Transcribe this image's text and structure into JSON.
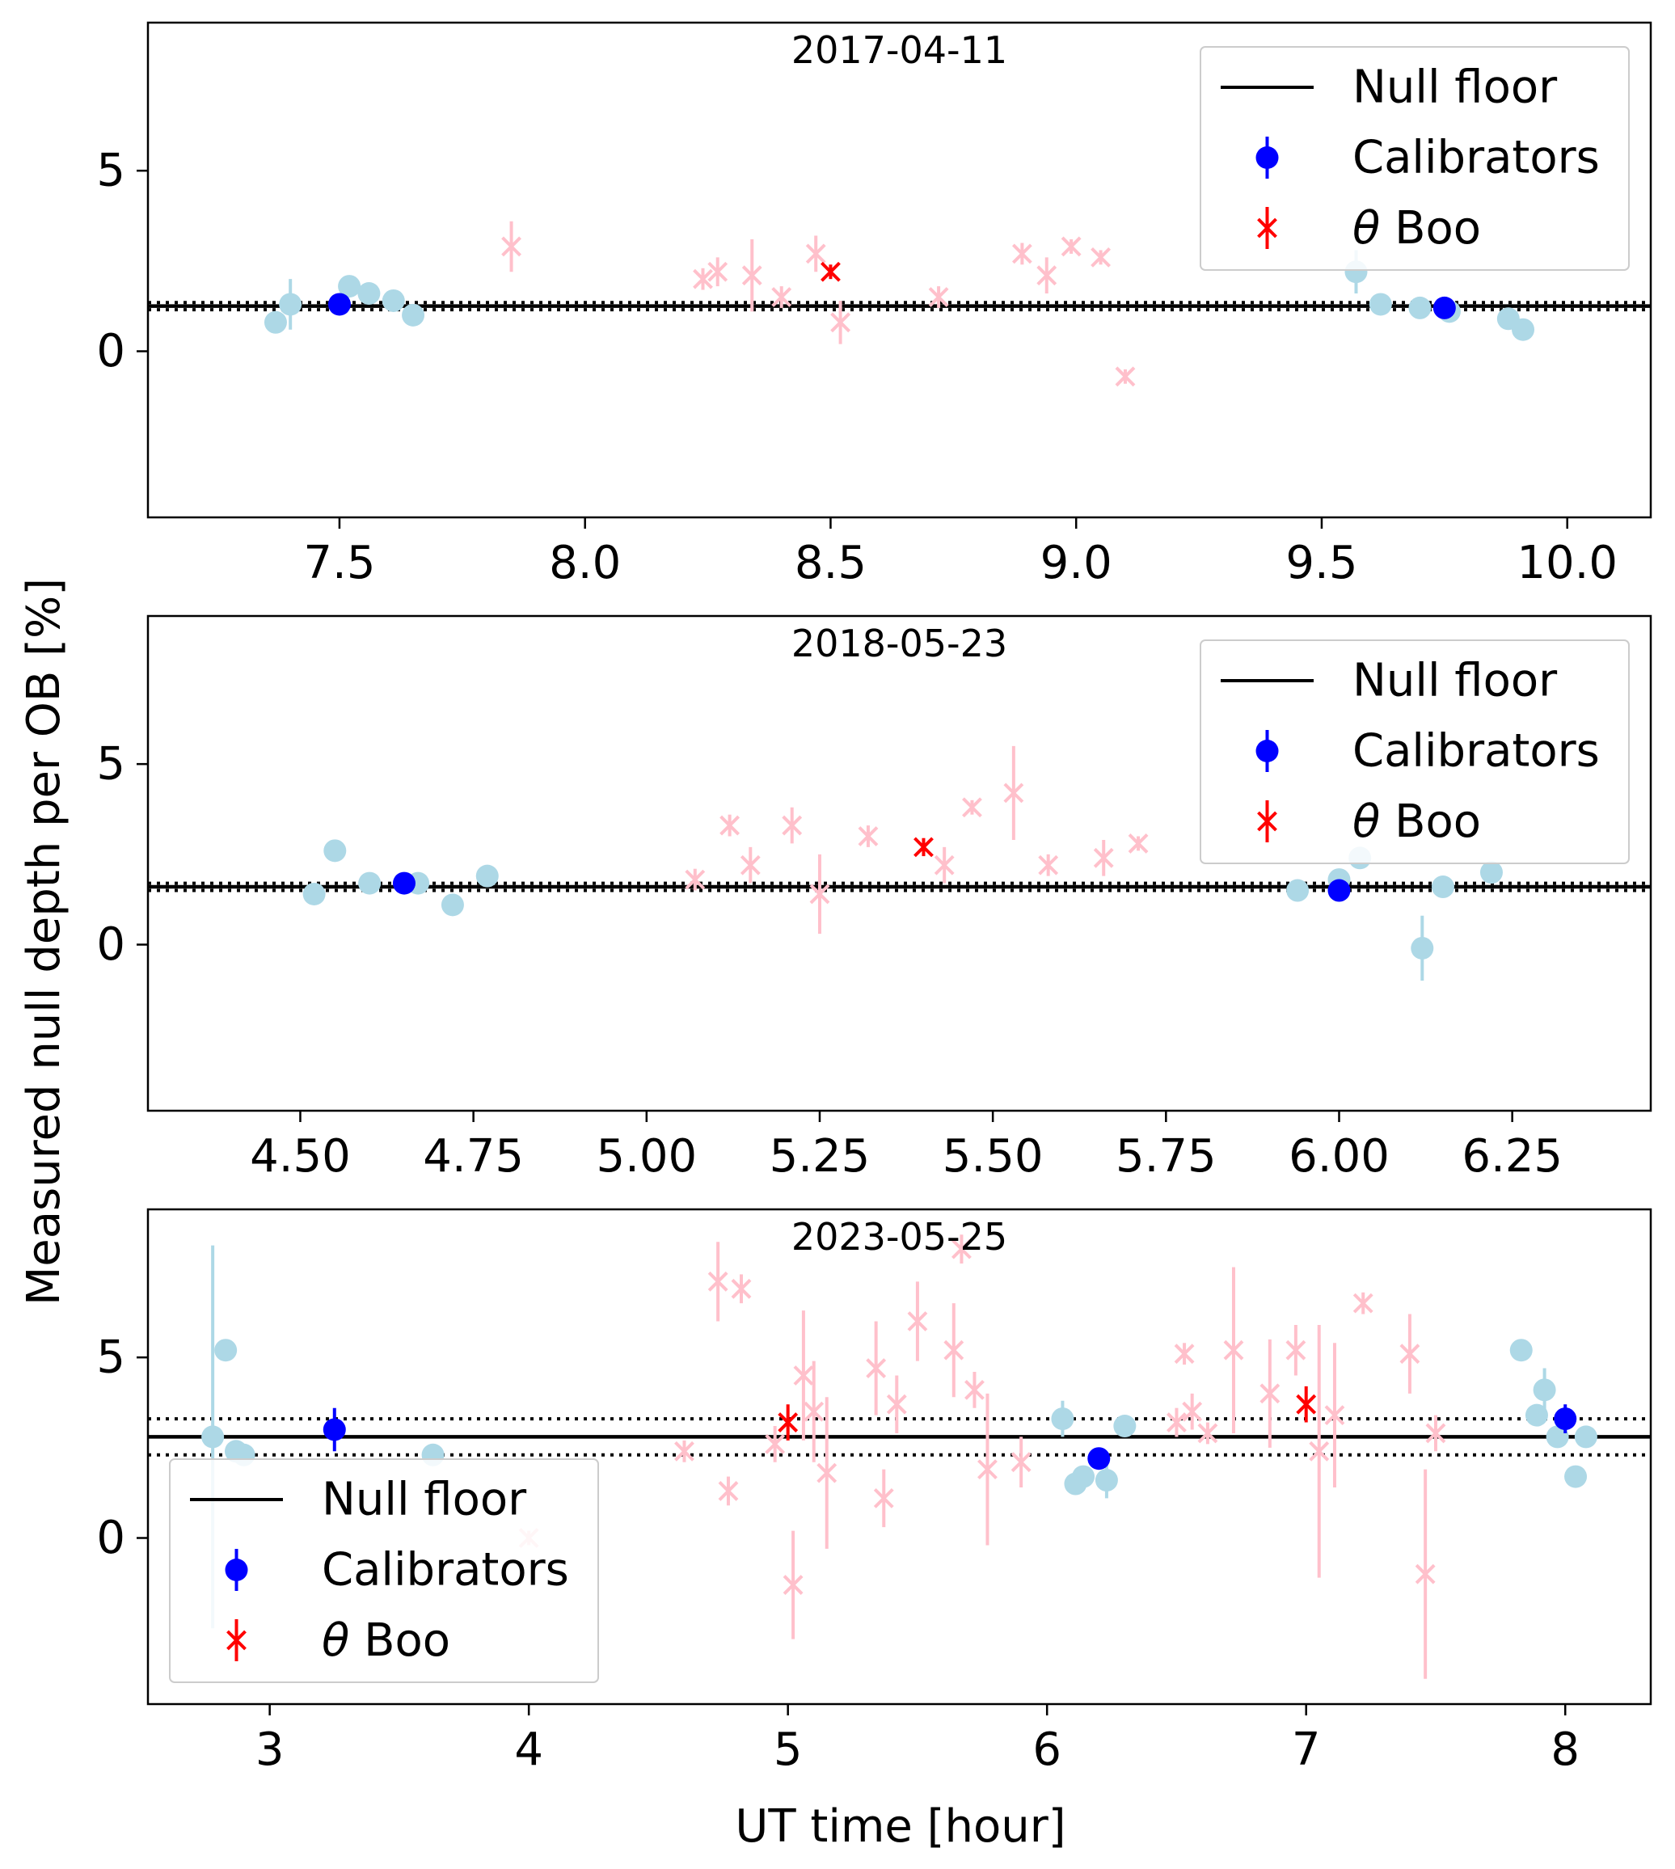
{
  "figure": {
    "ylabel": "Measured null depth per OB [%]",
    "xlabel": "UT time [hour]"
  },
  "legend": {
    "null_floor": "Null floor",
    "calibrators": "Calibrators",
    "target_symbol": "θ",
    "target_name": " Boo"
  },
  "colors": {
    "null_floor": "#000000",
    "calibrators": "#0000ff",
    "calibrators_faint": "#add8e6",
    "target": "#ff0000",
    "target_faint": "#ffc0cb"
  },
  "chart_data": [
    {
      "type": "scatter",
      "title": "2017-04-11",
      "xlim": [
        7.11,
        10.17
      ],
      "ylim": [
        -4.6,
        9.1
      ],
      "xticks": [
        7.5,
        8.0,
        8.5,
        9.0,
        9.5,
        10.0
      ],
      "xtick_labels": [
        "7.5",
        "8.0",
        "8.5",
        "9.0",
        "9.5",
        "10.0"
      ],
      "yticks": [
        0,
        5
      ],
      "ytick_labels": [
        "0",
        "5"
      ],
      "legend_position": "upper right",
      "null_floor": {
        "value": 1.25,
        "lower": 1.15,
        "upper": 1.35
      },
      "calibrators_faint": [
        {
          "x": 7.37,
          "y": 0.8,
          "err": 0.2
        },
        {
          "x": 7.4,
          "y": 1.3,
          "err": 0.7
        },
        {
          "x": 7.52,
          "y": 1.8,
          "err": 0.3
        },
        {
          "x": 7.56,
          "y": 1.6,
          "err": 0.2
        },
        {
          "x": 7.61,
          "y": 1.4,
          "err": 0.2
        },
        {
          "x": 7.65,
          "y": 1.0,
          "err": 0.1
        },
        {
          "x": 9.57,
          "y": 2.2,
          "err": 0.6
        },
        {
          "x": 9.62,
          "y": 1.3,
          "err": 0.1
        },
        {
          "x": 9.7,
          "y": 1.2,
          "err": 0.3
        },
        {
          "x": 9.76,
          "y": 1.1,
          "err": 0.2
        },
        {
          "x": 9.88,
          "y": 0.9,
          "err": 0.3
        },
        {
          "x": 9.91,
          "y": 0.6,
          "err": 0.2
        }
      ],
      "calibrators": [
        {
          "x": 7.5,
          "y": 1.3,
          "err": 0.2
        },
        {
          "x": 9.75,
          "y": 1.2,
          "err": 0.15
        }
      ],
      "target_faint": [
        {
          "x": 7.85,
          "y": 2.9,
          "err": 0.7
        },
        {
          "x": 8.24,
          "y": 2.0,
          "err": 0.3
        },
        {
          "x": 8.27,
          "y": 2.2,
          "err": 0.4
        },
        {
          "x": 8.34,
          "y": 2.1,
          "err": 1.0
        },
        {
          "x": 8.4,
          "y": 1.5,
          "err": 0.3
        },
        {
          "x": 8.47,
          "y": 2.7,
          "err": 0.5
        },
        {
          "x": 8.52,
          "y": 0.8,
          "err": 0.6
        },
        {
          "x": 8.72,
          "y": 1.5,
          "err": 0.3
        },
        {
          "x": 8.89,
          "y": 2.7,
          "err": 0.3
        },
        {
          "x": 8.94,
          "y": 2.1,
          "err": 0.5
        },
        {
          "x": 8.99,
          "y": 2.9,
          "err": 0.2
        },
        {
          "x": 9.05,
          "y": 2.6,
          "err": 0.2
        },
        {
          "x": 9.1,
          "y": -0.7,
          "err": 0.2
        }
      ],
      "target": [
        {
          "x": 8.5,
          "y": 2.2,
          "err": 0.2
        }
      ]
    },
    {
      "type": "scatter",
      "title": "2018-05-23",
      "xlim": [
        4.28,
        6.45
      ],
      "ylim": [
        -4.6,
        9.1
      ],
      "xticks": [
        4.5,
        4.75,
        5.0,
        5.25,
        5.5,
        5.75,
        6.0,
        6.25
      ],
      "xtick_labels": [
        "4.50",
        "4.75",
        "5.00",
        "5.25",
        "5.50",
        "5.75",
        "6.00",
        "6.25"
      ],
      "yticks": [
        0,
        5
      ],
      "ytick_labels": [
        "0",
        "5"
      ],
      "legend_position": "upper right",
      "null_floor": {
        "value": 1.6,
        "lower": 1.5,
        "upper": 1.7
      },
      "calibrators_faint": [
        {
          "x": 4.52,
          "y": 1.4,
          "err": 0.1
        },
        {
          "x": 4.55,
          "y": 2.6,
          "err": 0.1
        },
        {
          "x": 4.6,
          "y": 1.7,
          "err": 0.1
        },
        {
          "x": 4.67,
          "y": 1.7,
          "err": 0.1
        },
        {
          "x": 4.72,
          "y": 1.1,
          "err": 0.1
        },
        {
          "x": 4.77,
          "y": 1.9,
          "err": 0.1
        },
        {
          "x": 5.94,
          "y": 1.5,
          "err": 0.1
        },
        {
          "x": 6.0,
          "y": 1.8,
          "err": 0.1
        },
        {
          "x": 6.03,
          "y": 2.4,
          "err": 0.1
        },
        {
          "x": 6.12,
          "y": -0.1,
          "err": 0.9
        },
        {
          "x": 6.15,
          "y": 1.6,
          "err": 0.1
        },
        {
          "x": 6.22,
          "y": 2.0,
          "err": 0.1
        }
      ],
      "calibrators": [
        {
          "x": 4.65,
          "y": 1.7,
          "err": 0.15
        },
        {
          "x": 6.0,
          "y": 1.5,
          "err": 0.15
        }
      ],
      "target_faint": [
        {
          "x": 5.07,
          "y": 1.8,
          "err": 0.3
        },
        {
          "x": 5.12,
          "y": 3.3,
          "err": 0.3
        },
        {
          "x": 5.15,
          "y": 2.2,
          "err": 0.5
        },
        {
          "x": 5.21,
          "y": 3.3,
          "err": 0.5
        },
        {
          "x": 5.25,
          "y": 1.4,
          "err": 1.1
        },
        {
          "x": 5.32,
          "y": 3.0,
          "err": 0.3
        },
        {
          "x": 5.43,
          "y": 2.2,
          "err": 0.5
        },
        {
          "x": 5.47,
          "y": 3.8,
          "err": 0.2
        },
        {
          "x": 5.53,
          "y": 4.2,
          "err": 1.3
        },
        {
          "x": 5.58,
          "y": 2.2,
          "err": 0.3
        },
        {
          "x": 5.66,
          "y": 2.4,
          "err": 0.5
        },
        {
          "x": 5.71,
          "y": 2.8,
          "err": 0.2
        }
      ],
      "target": [
        {
          "x": 5.4,
          "y": 2.7,
          "err": 0.25
        }
      ]
    },
    {
      "type": "scatter",
      "title": "2023-05-25",
      "xlim": [
        2.53,
        8.33
      ],
      "ylim": [
        -4.6,
        9.1
      ],
      "xticks": [
        3,
        4,
        5,
        6,
        7,
        8
      ],
      "xtick_labels": [
        "3",
        "4",
        "5",
        "6",
        "7",
        "8"
      ],
      "yticks": [
        0,
        5
      ],
      "ytick_labels": [
        "0",
        "5"
      ],
      "legend_position": "lower left",
      "null_floor": {
        "value": 2.8,
        "lower": 2.3,
        "upper": 3.3
      },
      "calibrators_faint": [
        {
          "x": 2.78,
          "y": 2.8,
          "err": 5.3
        },
        {
          "x": 2.83,
          "y": 5.2,
          "err": 0.2
        },
        {
          "x": 2.87,
          "y": 2.4,
          "err": 0.2
        },
        {
          "x": 2.9,
          "y": 2.3,
          "err": 0.2
        },
        {
          "x": 3.63,
          "y": 2.3,
          "err": 0.2
        },
        {
          "x": 6.06,
          "y": 3.3,
          "err": 0.5
        },
        {
          "x": 6.11,
          "y": 1.5,
          "err": 0.2
        },
        {
          "x": 6.14,
          "y": 1.7,
          "err": 0.2
        },
        {
          "x": 6.23,
          "y": 1.6,
          "err": 0.5
        },
        {
          "x": 6.3,
          "y": 3.1,
          "err": 0.2
        },
        {
          "x": 7.83,
          "y": 5.2,
          "err": 0.2
        },
        {
          "x": 7.89,
          "y": 3.4,
          "err": 0.2
        },
        {
          "x": 7.92,
          "y": 4.1,
          "err": 0.6
        },
        {
          "x": 7.97,
          "y": 2.8,
          "err": 0.2
        },
        {
          "x": 8.04,
          "y": 1.7,
          "err": 0.2
        },
        {
          "x": 8.08,
          "y": 2.8,
          "err": 0.2
        }
      ],
      "calibrators": [
        {
          "x": 3.25,
          "y": 3.0,
          "err": 0.6
        },
        {
          "x": 6.2,
          "y": 2.2,
          "err": 0.2
        },
        {
          "x": 8.0,
          "y": 3.3,
          "err": 0.4
        }
      ],
      "target_faint": [
        {
          "x": 4.0,
          "y": 0.0,
          "err": 0.2
        },
        {
          "x": 4.6,
          "y": 2.4,
          "err": 0.3
        },
        {
          "x": 4.73,
          "y": 7.1,
          "err": 1.1
        },
        {
          "x": 4.77,
          "y": 1.3,
          "err": 0.4
        },
        {
          "x": 4.82,
          "y": 6.9,
          "err": 0.4
        },
        {
          "x": 4.95,
          "y": 2.6,
          "err": 0.5
        },
        {
          "x": 5.02,
          "y": -1.3,
          "err": 1.5
        },
        {
          "x": 5.06,
          "y": 4.5,
          "err": 1.8
        },
        {
          "x": 5.1,
          "y": 3.5,
          "err": 1.4
        },
        {
          "x": 5.15,
          "y": 1.8,
          "err": 2.1
        },
        {
          "x": 5.34,
          "y": 4.7,
          "err": 1.3
        },
        {
          "x": 5.37,
          "y": 1.1,
          "err": 0.8
        },
        {
          "x": 5.42,
          "y": 3.7,
          "err": 0.8
        },
        {
          "x": 5.5,
          "y": 6.0,
          "err": 1.1
        },
        {
          "x": 5.64,
          "y": 5.2,
          "err": 1.3
        },
        {
          "x": 5.67,
          "y": 8.0,
          "err": 0.4
        },
        {
          "x": 5.72,
          "y": 4.1,
          "err": 0.5
        },
        {
          "x": 5.77,
          "y": 1.9,
          "err": 2.1
        },
        {
          "x": 5.9,
          "y": 2.1,
          "err": 0.7
        },
        {
          "x": 6.5,
          "y": 3.2,
          "err": 0.4
        },
        {
          "x": 6.53,
          "y": 5.1,
          "err": 0.3
        },
        {
          "x": 6.56,
          "y": 3.5,
          "err": 0.5
        },
        {
          "x": 6.62,
          "y": 2.9,
          "err": 0.3
        },
        {
          "x": 6.72,
          "y": 5.2,
          "err": 2.3
        },
        {
          "x": 6.86,
          "y": 4.0,
          "err": 1.5
        },
        {
          "x": 6.96,
          "y": 5.2,
          "err": 0.7
        },
        {
          "x": 7.05,
          "y": 2.4,
          "err": 3.5
        },
        {
          "x": 7.11,
          "y": 3.4,
          "err": 2.0
        },
        {
          "x": 7.22,
          "y": 6.5,
          "err": 0.3
        },
        {
          "x": 7.4,
          "y": 5.1,
          "err": 1.1
        },
        {
          "x": 7.46,
          "y": -1.0,
          "err": 2.9
        },
        {
          "x": 7.5,
          "y": 2.9,
          "err": 0.5
        }
      ],
      "target": [
        {
          "x": 5.0,
          "y": 3.2,
          "err": 0.5
        },
        {
          "x": 7.0,
          "y": 3.7,
          "err": 0.5
        }
      ]
    }
  ]
}
